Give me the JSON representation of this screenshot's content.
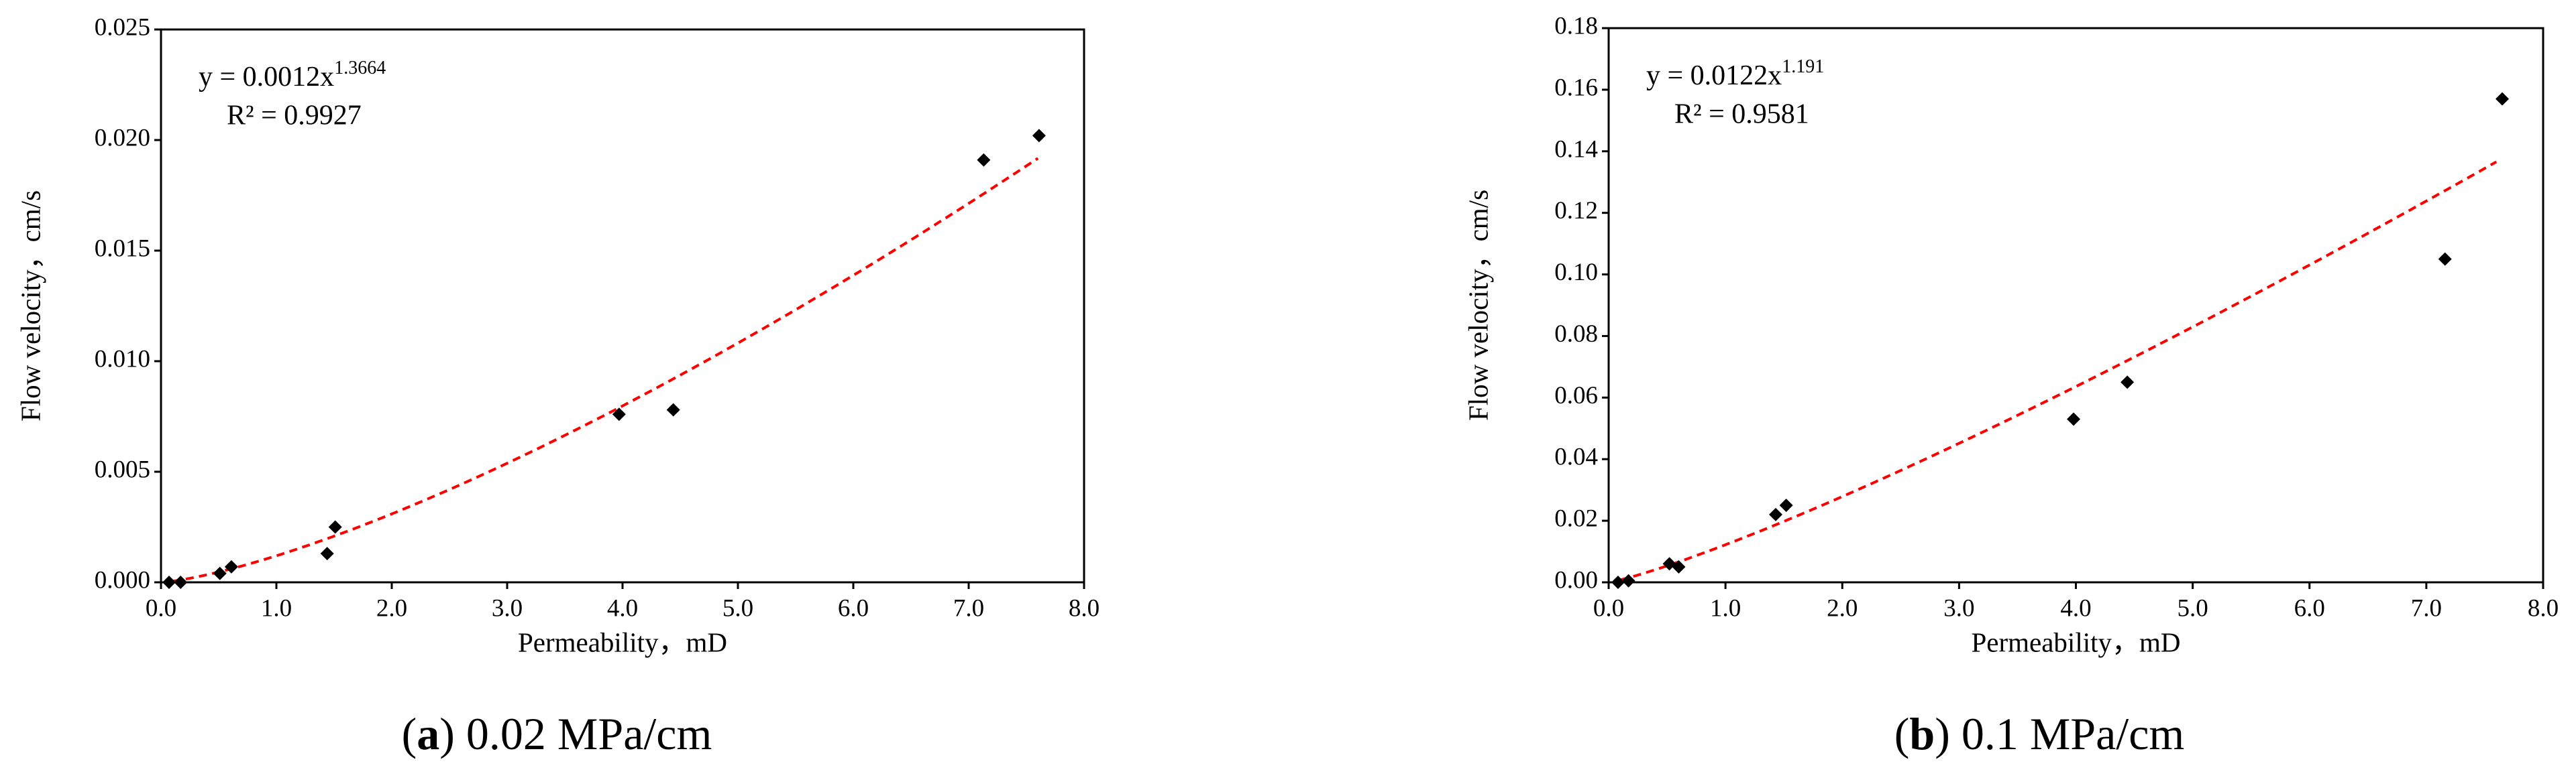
{
  "chart_data": [
    {
      "type": "scatter",
      "y_label": "Flow velocity，cm/s",
      "x_label": "Permeability，mD",
      "caption_parts": [
        "(",
        "a",
        ") 0.02 MPa/cm"
      ],
      "x": [
        0.07,
        0.17,
        0.51,
        0.61,
        1.44,
        1.51,
        3.97,
        4.44,
        7.13,
        7.61
      ],
      "values": [
        0.0,
        0.0,
        0.0004,
        0.0007,
        0.0013,
        0.0025,
        0.0076,
        0.0078,
        0.0191,
        0.0202
      ],
      "color": "#000000",
      "xlim": [
        0,
        8
      ],
      "xticks": [
        {
          "value": 0,
          "label": "0.0"
        },
        {
          "value": 1,
          "label": "1.0"
        },
        {
          "value": 2,
          "label": "2.0"
        },
        {
          "value": 3,
          "label": "3.0"
        },
        {
          "value": 4,
          "label": "4.0"
        },
        {
          "value": 5,
          "label": "5.0"
        },
        {
          "value": 6,
          "label": "6.0"
        },
        {
          "value": 7,
          "label": "7.0"
        },
        {
          "value": 8,
          "label": "8.0"
        }
      ],
      "ylim": [
        0,
        0.025
      ],
      "yticks": [
        {
          "value": 0,
          "label": "0.000"
        },
        {
          "value": 0.005,
          "label": "0.005"
        },
        {
          "value": 0.01,
          "label": "0.010"
        },
        {
          "value": 0.015,
          "label": "0.015"
        },
        {
          "value": 0.02,
          "label": "0.020"
        },
        {
          "value": 0.025,
          "label": "0.025"
        }
      ],
      "trendline": {
        "type": "power",
        "coefficient": 0.0012,
        "exponent": 1.3664,
        "x_range": [
          0.1,
          7.6
        ],
        "color": "#ff0000",
        "equation_label": "y = 0.0012x",
        "r_squared_label": "R² = 0.9927"
      }
    },
    {
      "type": "scatter",
      "y_label": "Flow velocity，cm/s",
      "x_label": "Permeability，mD",
      "caption_parts": [
        "(",
        "b",
        ") 0.1 MPa/cm"
      ],
      "x": [
        0.08,
        0.17,
        0.52,
        0.6,
        1.43,
        1.52,
        3.98,
        4.44,
        7.16,
        7.65
      ],
      "values": [
        0.0,
        0.0005,
        0.006,
        0.005,
        0.022,
        0.025,
        0.053,
        0.065,
        0.105,
        0.157
      ],
      "color": "#000000",
      "xlim": [
        0,
        8
      ],
      "xticks": [
        {
          "value": 0,
          "label": "0.0"
        },
        {
          "value": 1,
          "label": "1.0"
        },
        {
          "value": 2,
          "label": "2.0"
        },
        {
          "value": 3,
          "label": "3.0"
        },
        {
          "value": 4,
          "label": "4.0"
        },
        {
          "value": 5,
          "label": "5.0"
        },
        {
          "value": 6,
          "label": "6.0"
        },
        {
          "value": 7,
          "label": "7.0"
        },
        {
          "value": 8,
          "label": "8.0"
        }
      ],
      "ylim": [
        0,
        0.18
      ],
      "yticks": [
        {
          "value": 0,
          "label": "0.00"
        },
        {
          "value": 0.02,
          "label": "0.02"
        },
        {
          "value": 0.04,
          "label": "0.04"
        },
        {
          "value": 0.06,
          "label": "0.06"
        },
        {
          "value": 0.08,
          "label": "0.08"
        },
        {
          "value": 0.1,
          "label": "0.10"
        },
        {
          "value": 0.12,
          "label": "0.12"
        },
        {
          "value": 0.14,
          "label": "0.14"
        },
        {
          "value": 0.16,
          "label": "0.16"
        },
        {
          "value": 0.18,
          "label": "0.18"
        }
      ],
      "trendline": {
        "type": "power",
        "coefficient": 0.0122,
        "exponent": 1.191,
        "x_range": [
          0.1,
          7.6
        ],
        "color": "#ff0000",
        "equation_label": "y = 0.0122x",
        "r_squared_label": "R² = 0.9581"
      }
    }
  ]
}
